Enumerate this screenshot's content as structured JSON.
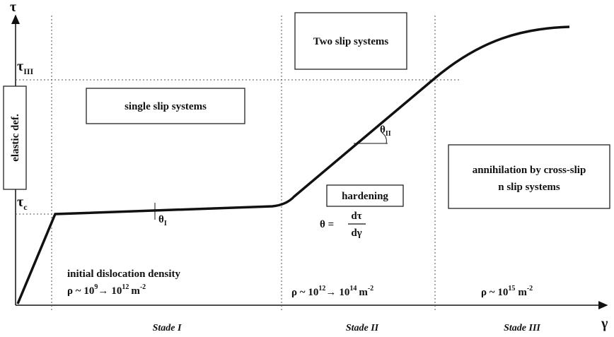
{
  "axes": {
    "y_label": "τ",
    "x_label": "γ",
    "tau_III": {
      "symbol": "τ",
      "sub": "III"
    },
    "tau_c": {
      "symbol": "τ",
      "sub": "c"
    }
  },
  "labels": {
    "elastic": "elastic def.",
    "single_slip": "single slip systems",
    "two_slip": "Two slip systems",
    "hardening": "hardening",
    "annihilation": [
      "annihilation by cross-slip",
      "n slip systems"
    ],
    "initial_density": "initial dislocation density"
  },
  "angles": {
    "theta_I": {
      "symbol": "θ",
      "sub": "I"
    },
    "theta_II": {
      "symbol": "θ",
      "sub": "II"
    }
  },
  "formula": {
    "lhs": "θ =",
    "numerator": "dτ",
    "denominator": "dγ"
  },
  "densities": [
    {
      "base": "ρ ~ 10",
      "exp": "9",
      "arrow": "→",
      "base2": "10",
      "exp2": "12",
      "unit": "m",
      "unit_exp": "-2"
    },
    {
      "base": "ρ ~ 10",
      "exp": "12",
      "arrow": "→",
      "base2": "10",
      "exp2": "14",
      "unit": "m",
      "unit_exp": "-2"
    },
    {
      "base": "ρ ~ 10",
      "exp": "15",
      "unit": "m",
      "unit_exp": "-2"
    }
  ],
  "stages": [
    "Stade I",
    "Stade II",
    "Stade III"
  ]
}
